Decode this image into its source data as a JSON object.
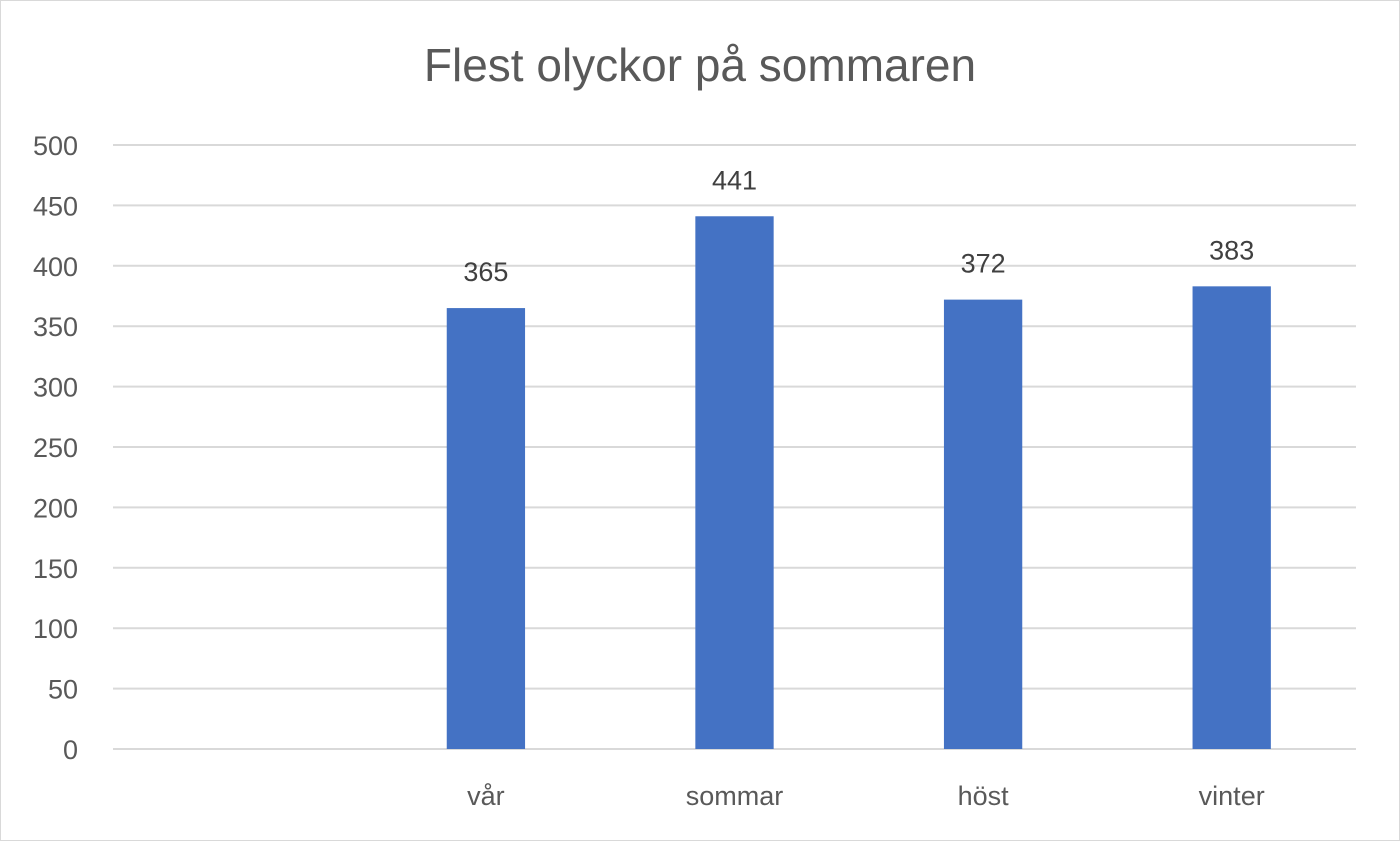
{
  "chart_data": {
    "type": "bar",
    "title": "Flest olyckor på sommaren",
    "categories": [
      "",
      "vår",
      "sommar",
      "höst",
      "vinter"
    ],
    "values": [
      null,
      365,
      441,
      372,
      383
    ],
    "data_labels": [
      "",
      "365",
      "441",
      "372",
      "383"
    ],
    "ylim": [
      0,
      500
    ],
    "yticks": [
      0,
      50,
      100,
      150,
      200,
      250,
      300,
      350,
      400,
      450,
      500
    ],
    "grid": true,
    "legend": "none",
    "colors": {
      "bar": "#4472c4",
      "grid": "#d9d9d9"
    }
  }
}
